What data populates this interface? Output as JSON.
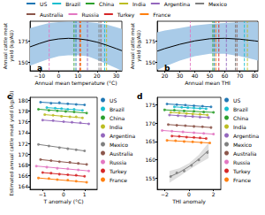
{
  "chart_data": [
    {
      "type": "line",
      "title": "a",
      "x_label": "Annual mean temperature (°C)",
      "y_label": "Annual cattle meat\nyield (kg/AU)",
      "xlim": [
        -15,
        33
      ],
      "xticks": [
        {
          "value": -10,
          "label": "−10"
        },
        0,
        10,
        20,
        30
      ],
      "ylim": [
        140,
        198
      ],
      "yticks": [
        150,
        175
      ],
      "grid": false,
      "legend": "upper left",
      "fit": {
        "color": "#000000",
        "band_color": "#a9cbe8",
        "x": [
          -15,
          -10,
          -5,
          0,
          5,
          10,
          15,
          20,
          25,
          30,
          33
        ],
        "values": [
          168,
          172,
          175.5,
          177.3,
          178,
          177.5,
          176,
          173.5,
          170,
          166,
          163.5
        ],
        "lower": [
          146,
          150,
          154,
          157,
          158,
          158,
          157,
          153,
          148,
          143,
          140
        ],
        "upper": [
          190,
          193,
          196,
          197,
          197.5,
          197.5,
          197,
          196,
          194,
          191,
          189
        ]
      },
      "series": [
        {
          "name": "US",
          "color": "#1f77b4",
          "type": "vline",
          "line_style": "dashed",
          "x": 9
        },
        {
          "name": "Brazil",
          "color": "#17becf",
          "type": "vline",
          "line_style": "dashed",
          "x": 24
        },
        {
          "name": "China",
          "color": "#2ca02c",
          "type": "vline",
          "line_style": "dashed",
          "x": 8
        },
        {
          "name": "India",
          "color": "#bcbd22",
          "type": "vline",
          "line_style": "dashed",
          "x": 25
        },
        {
          "name": "Argentina",
          "color": "#9467bd",
          "type": "vline",
          "line_style": "dashed",
          "x": 15
        },
        {
          "name": "Mexico",
          "color": "#7f7f7f",
          "type": "vline",
          "line_style": "dashed",
          "x": 21
        },
        {
          "name": "Australia",
          "color": "#8c564b",
          "type": "vline",
          "line_style": "dashed",
          "x": 22
        },
        {
          "name": "Russia",
          "color": "#e377c2",
          "type": "vline",
          "line_style": "dashed",
          "x": -5
        },
        {
          "name": "Turkey",
          "color": "#d62728",
          "type": "vline",
          "line_style": "dashed",
          "x": 11
        },
        {
          "name": "France",
          "color": "#ff7f0e",
          "type": "vline",
          "line_style": "dashed",
          "x": 11.5
        }
      ]
    },
    {
      "type": "line",
      "title": "b",
      "x_label": "Annual mean THI",
      "y_label": "Annual cattle meat\nyield (kg/AU)",
      "xlim": [
        15,
        82
      ],
      "xticks": [
        20,
        30,
        40,
        50,
        60,
        70,
        80
      ],
      "ylim": [
        140,
        198
      ],
      "yticks": [
        150,
        175
      ],
      "grid": false,
      "fit": {
        "color": "#000000",
        "band_color": "#a9cbe8",
        "x": [
          15,
          20,
          30,
          40,
          50,
          60,
          70,
          80,
          82
        ],
        "values": [
          163,
          166,
          171,
          175,
          177.5,
          178,
          177,
          175,
          174.5
        ],
        "lower": [
          141,
          145,
          152,
          157,
          160,
          160,
          157,
          153,
          152
        ],
        "upper": [
          185,
          187,
          190,
          193,
          195,
          196,
          197,
          197,
          197
        ]
      },
      "series": [
        {
          "name": "US",
          "color": "#1f77b4",
          "type": "vline",
          "line_style": "dashed",
          "x": 53
        },
        {
          "name": "Brazil",
          "color": "#17becf",
          "type": "vline",
          "line_style": "dashed",
          "x": 73
        },
        {
          "name": "China",
          "color": "#2ca02c",
          "type": "vline",
          "line_style": "dashed",
          "x": 52
        },
        {
          "name": "India",
          "color": "#bcbd22",
          "type": "vline",
          "line_style": "dashed",
          "x": 75
        },
        {
          "name": "Argentina",
          "color": "#9467bd",
          "type": "vline",
          "line_style": "dashed",
          "x": 61
        },
        {
          "name": "Mexico",
          "color": "#7f7f7f",
          "type": "vline",
          "line_style": "dashed",
          "x": 67
        },
        {
          "name": "Australia",
          "color": "#8c564b",
          "type": "vline",
          "line_style": "dashed",
          "x": 68
        },
        {
          "name": "Russia",
          "color": "#e377c2",
          "type": "vline",
          "line_style": "dashed",
          "x": 37
        },
        {
          "name": "Turkey",
          "color": "#d62728",
          "type": "vline",
          "line_style": "dashed",
          "x": 56
        },
        {
          "name": "France",
          "color": "#ff7f0e",
          "type": "vline",
          "line_style": "dashed",
          "x": 54
        }
      ]
    },
    {
      "type": "scatter",
      "title": "c",
      "x_label": "T anomaly (°C)",
      "y_label": "Estimated annual cattle meat yield (kg/AU)",
      "xlim": [
        -1.6,
        1.6
      ],
      "xticks": [
        {
          "value": -1,
          "label": "−1"
        },
        0,
        1
      ],
      "ylim": [
        163.5,
        180.5
      ],
      "yticks": [
        164,
        166,
        168,
        170,
        172,
        174,
        176,
        178,
        180
      ],
      "grid": false,
      "legend": "right",
      "series": [
        {
          "name": "US",
          "color": "#1f77b4",
          "marker": "o",
          "x": [
            -1.1,
            -0.6,
            -0.2,
            0.2,
            0.6,
            1.0
          ],
          "values": [
            179.6,
            179.4,
            179.5,
            179.3,
            179.2,
            179.1
          ],
          "fit_x": [
            -1.1,
            1.0
          ],
          "fit_values": [
            179.6,
            179.1
          ]
        },
        {
          "name": "Brazil",
          "color": "#17becf",
          "marker": "o",
          "x": [
            -0.8,
            -0.4,
            -0.1,
            0.2,
            0.5,
            0.9
          ],
          "values": [
            178.6,
            178.5,
            178.4,
            178.3,
            178.3,
            178.1
          ],
          "fit_x": [
            -0.8,
            0.9
          ],
          "fit_values": [
            178.6,
            178.1
          ]
        },
        {
          "name": "China",
          "color": "#2ca02c",
          "marker": "o",
          "x": [
            -1.2,
            -0.7,
            -0.3,
            0.1,
            0.5,
            1.1
          ],
          "values": [
            178.3,
            178.1,
            178.0,
            177.9,
            177.8,
            177.6
          ],
          "fit_x": [
            -1.2,
            1.1
          ],
          "fit_values": [
            178.3,
            177.6
          ]
        },
        {
          "name": "India",
          "color": "#bcbd22",
          "marker": "o",
          "x": [
            -0.9,
            -0.5,
            -0.1,
            0.3,
            0.6,
            0.9
          ],
          "values": [
            177.3,
            177.2,
            177.0,
            176.9,
            176.9,
            176.7
          ],
          "fit_x": [
            -0.9,
            0.9
          ],
          "fit_values": [
            177.3,
            176.7
          ]
        },
        {
          "name": "Argentina",
          "color": "#9467bd",
          "marker": "o",
          "x": [
            -1.0,
            -0.5,
            0,
            0.4,
            0.8,
            1.2
          ],
          "values": [
            176.3,
            176.2,
            176.0,
            175.9,
            175.8,
            175.6
          ],
          "fit_x": [
            -1.0,
            1.2
          ],
          "fit_values": [
            176.3,
            175.6
          ]
        },
        {
          "name": "Mexico",
          "color": "#7f7f7f",
          "marker": "o",
          "x": [
            -1.2,
            -0.7,
            -0.2,
            0.2,
            0.6,
            1.0
          ],
          "values": [
            171.8,
            171.5,
            171.2,
            171.0,
            170.8,
            170.6
          ],
          "fit_x": [
            -1.2,
            1.0
          ],
          "fit_values": [
            171.8,
            170.6
          ]
        },
        {
          "name": "Australia",
          "color": "#8c564b",
          "marker": "o",
          "x": [
            -1.1,
            -0.6,
            -0.2,
            0.3,
            0.7,
            1.1
          ],
          "values": [
            169.0,
            168.8,
            168.6,
            168.5,
            168.3,
            168.1
          ],
          "fit_x": [
            -1.1,
            1.1
          ],
          "fit_values": [
            169.0,
            168.1
          ]
        },
        {
          "name": "Russia",
          "color": "#e377c2",
          "marker": "o",
          "x": [
            -1.3,
            -0.8,
            -0.3,
            0.2,
            0.7,
            1.2
          ],
          "values": [
            167.8,
            167.6,
            167.4,
            167.3,
            167.1,
            166.9
          ],
          "fit_x": [
            -1.3,
            1.2
          ],
          "fit_values": [
            167.8,
            166.9
          ]
        },
        {
          "name": "Turkey",
          "color": "#d62728",
          "marker": "o",
          "x": [
            -1.0,
            -0.6,
            -0.2,
            0.2,
            0.6,
            1.0
          ],
          "values": [
            166.6,
            166.5,
            166.3,
            166.2,
            166.1,
            165.9
          ],
          "fit_x": [
            -1.0,
            1.0
          ],
          "fit_values": [
            166.6,
            165.9
          ]
        },
        {
          "name": "France",
          "color": "#ff7f0e",
          "marker": "o",
          "x": [
            -1.2,
            -0.7,
            -0.3,
            0.2,
            0.6,
            1.1
          ],
          "values": [
            165.6,
            165.5,
            165.3,
            165.2,
            165.0,
            164.8
          ],
          "fit_x": [
            -1.2,
            1.1
          ],
          "fit_values": [
            165.6,
            164.8
          ]
        }
      ]
    },
    {
      "type": "scatter",
      "title": "d",
      "x_label": "THI anomaly",
      "xlim": [
        -2.6,
        2.6
      ],
      "xticks": [
        {
          "value": -2,
          "label": "−2"
        },
        0,
        2
      ],
      "ylim": [
        152,
        177
      ],
      "yticks": [
        155,
        160,
        165,
        170,
        175
      ],
      "grid": false,
      "legend": "right",
      "series": [
        {
          "name": "US",
          "color": "#1f77b4",
          "marker": "o",
          "x": [
            -1.8,
            -1,
            -0.3,
            0.4,
            1.1,
            1.8
          ],
          "values": [
            175.2,
            175.0,
            174.9,
            174.7,
            174.6,
            174.4
          ],
          "fit_x": [
            -1.8,
            1.8
          ],
          "fit_values": [
            175.2,
            174.4
          ]
        },
        {
          "name": "Brazil",
          "color": "#17becf",
          "marker": "o",
          "x": [
            -1.2,
            -0.6,
            -0.1,
            0.4,
            0.9,
            1.4
          ],
          "values": [
            174.4,
            174.3,
            174.2,
            174.1,
            174.0,
            173.9
          ],
          "fit_x": [
            -1.2,
            1.4
          ],
          "fit_values": [
            174.4,
            173.9
          ]
        },
        {
          "name": "China",
          "color": "#2ca02c",
          "marker": "o",
          "x": [
            -2,
            -1.2,
            -0.4,
            0.4,
            1.2,
            2
          ],
          "values": [
            173.6,
            173.5,
            173.3,
            173.2,
            173.0,
            172.9
          ],
          "fit_x": [
            -2,
            2
          ],
          "fit_values": [
            173.6,
            172.9
          ]
        },
        {
          "name": "India",
          "color": "#bcbd22",
          "marker": "o",
          "x": [
            -1.5,
            -0.8,
            -0.2,
            0.3,
            0.9,
            1.5
          ],
          "values": [
            172.9,
            172.8,
            172.6,
            172.5,
            172.4,
            172.2
          ],
          "fit_x": [
            -1.5,
            1.5
          ],
          "fit_values": [
            172.9,
            172.2
          ]
        },
        {
          "name": "Argentina",
          "color": "#9467bd",
          "marker": "o",
          "x": [
            -1.6,
            -0.9,
            -0.3,
            0.3,
            0.9,
            1.6
          ],
          "values": [
            172.2,
            172.0,
            171.9,
            171.8,
            171.6,
            171.5
          ],
          "fit_x": [
            -1.6,
            1.6
          ],
          "fit_values": [
            172.2,
            171.5
          ]
        },
        {
          "name": "Mexico",
          "color": "#7f7f7f",
          "marker": "o",
          "x": [
            -1.5,
            -1.0,
            -0.4,
            0.2,
            0.8,
            1.5
          ],
          "values": [
            155.5,
            156.5,
            157,
            158.5,
            160,
            162
          ],
          "fit_x": [
            -1.6,
            -0.8,
            0,
            0.8,
            1.6
          ],
          "fit_values": [
            155.4,
            156.6,
            158.2,
            160.2,
            162.6
          ],
          "fit_lower": [
            153.8,
            155.5,
            157.3,
            159,
            160.5
          ],
          "fit_upper": [
            157,
            157.7,
            159.1,
            161.4,
            164.7
          ]
        },
        {
          "name": "Australia",
          "color": "#8c564b",
          "marker": "o",
          "x": [
            -1.7,
            -1,
            -0.3,
            0.4,
            1.1,
            1.8
          ],
          "values": [
            169.6,
            169.4,
            169.3,
            169.1,
            169.0,
            168.8
          ],
          "fit_x": [
            -1.7,
            1.8
          ],
          "fit_values": [
            169.6,
            168.8
          ]
        },
        {
          "name": "Russia",
          "color": "#e377c2",
          "marker": "o",
          "x": [
            -2.2,
            -1.4,
            -0.5,
            0.4,
            1.2,
            2
          ],
          "values": [
            168.0,
            167.8,
            167.6,
            167.4,
            167.2,
            167.0
          ],
          "fit_x": [
            -2.2,
            2
          ],
          "fit_values": [
            168.0,
            167.0
          ]
        },
        {
          "name": "Turkey",
          "color": "#d62728",
          "marker": "o",
          "x": [
            -1.4,
            -0.8,
            -0.2,
            0.4,
            0.9,
            1.4
          ],
          "values": [
            166.5,
            166.4,
            166.2,
            166.1,
            166.0,
            165.8
          ],
          "fit_x": [
            -1.4,
            1.4
          ],
          "fit_values": [
            166.5,
            165.8
          ]
        },
        {
          "name": "France",
          "color": "#ff7f0e",
          "marker": "o",
          "x": [
            -1.8,
            -1.1,
            -0.4,
            0.3,
            1.0,
            1.7
          ],
          "values": [
            165.3,
            165.2,
            165.0,
            164.9,
            164.7,
            164.6
          ],
          "fit_x": [
            -1.8,
            1.7
          ],
          "fit_values": [
            165.3,
            164.6
          ]
        }
      ]
    }
  ]
}
